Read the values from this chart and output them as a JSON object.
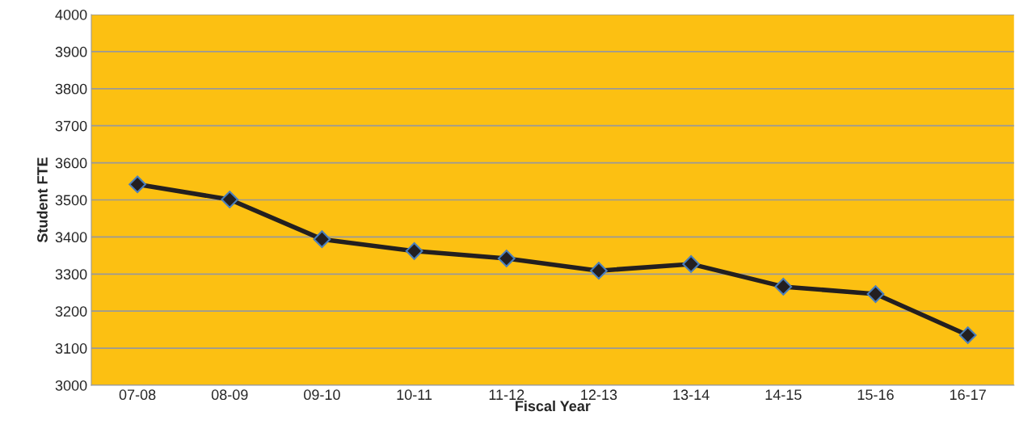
{
  "chart_data": {
    "type": "line",
    "xlabel": "Fiscal Year",
    "ylabel": "Student FTE",
    "categories": [
      "07-08",
      "08-09",
      "09-10",
      "10-11",
      "11-12",
      "12-13",
      "13-14",
      "14-15",
      "15-16",
      "16-17"
    ],
    "series": [
      {
        "color": "#231f20",
        "values": [
          3542,
          3501,
          3394,
          3362,
          3342,
          3309,
          3327,
          3266,
          3246,
          3135
        ]
      }
    ],
    "ylim": [
      3000,
      4000
    ],
    "yticks": [
      3000,
      3100,
      3200,
      3300,
      3400,
      3500,
      3600,
      3700,
      3800,
      3900,
      4000
    ],
    "grid": "y",
    "marker": "diamond",
    "line_style": "solid",
    "legend": false
  }
}
